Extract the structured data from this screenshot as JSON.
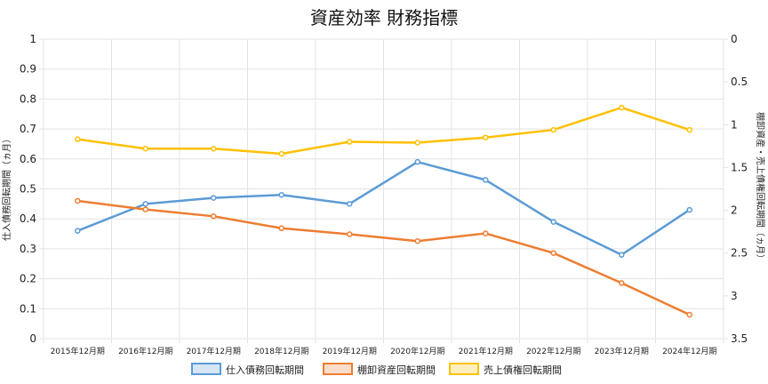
{
  "chart_data": {
    "type": "line",
    "title": "資産効率 財務指標",
    "categories": [
      "2015年12月期",
      "2016年12月期",
      "2017年12月期",
      "2018年12月期",
      "2019年12月期",
      "2020年12月期",
      "2021年12月期",
      "2022年12月期",
      "2023年12月期",
      "2024年12月期"
    ],
    "y_left": {
      "label": "仕入債務回転期間（ヵ月）",
      "min": 0,
      "max": 1,
      "ticks": [
        "0",
        "0.1",
        "0.2",
        "0.3",
        "0.4",
        "0.5",
        "0.6",
        "0.7",
        "0.8",
        "0.9",
        "1"
      ]
    },
    "y_right": {
      "label": "棚卸資産・売上債権回転期間（ヵ月）",
      "min": 0,
      "max": 3.5,
      "reversed": true,
      "ticks": [
        "0",
        "0.5",
        "1",
        "1.5",
        "2",
        "2.5",
        "3",
        "3.5"
      ]
    },
    "series": [
      {
        "name": "仕入債務回転期間",
        "axis": "left",
        "color": "#5b9bd5",
        "values": [
          0.36,
          0.45,
          0.47,
          0.48,
          0.45,
          0.59,
          0.53,
          0.39,
          0.28,
          0.43
        ]
      },
      {
        "name": "棚卸資産回転期間",
        "axis": "right",
        "color": "#ed7d31",
        "values": [
          1.89,
          1.99,
          2.07,
          2.21,
          2.28,
          2.36,
          2.27,
          2.5,
          2.85,
          3.22
        ]
      },
      {
        "name": "売上債権回転期間",
        "axis": "right",
        "color": "#ffc000",
        "values": [
          1.17,
          1.28,
          1.28,
          1.34,
          1.2,
          1.21,
          1.15,
          1.06,
          0.8,
          1.06
        ]
      }
    ],
    "grid": true,
    "legend_position": "bottom"
  }
}
